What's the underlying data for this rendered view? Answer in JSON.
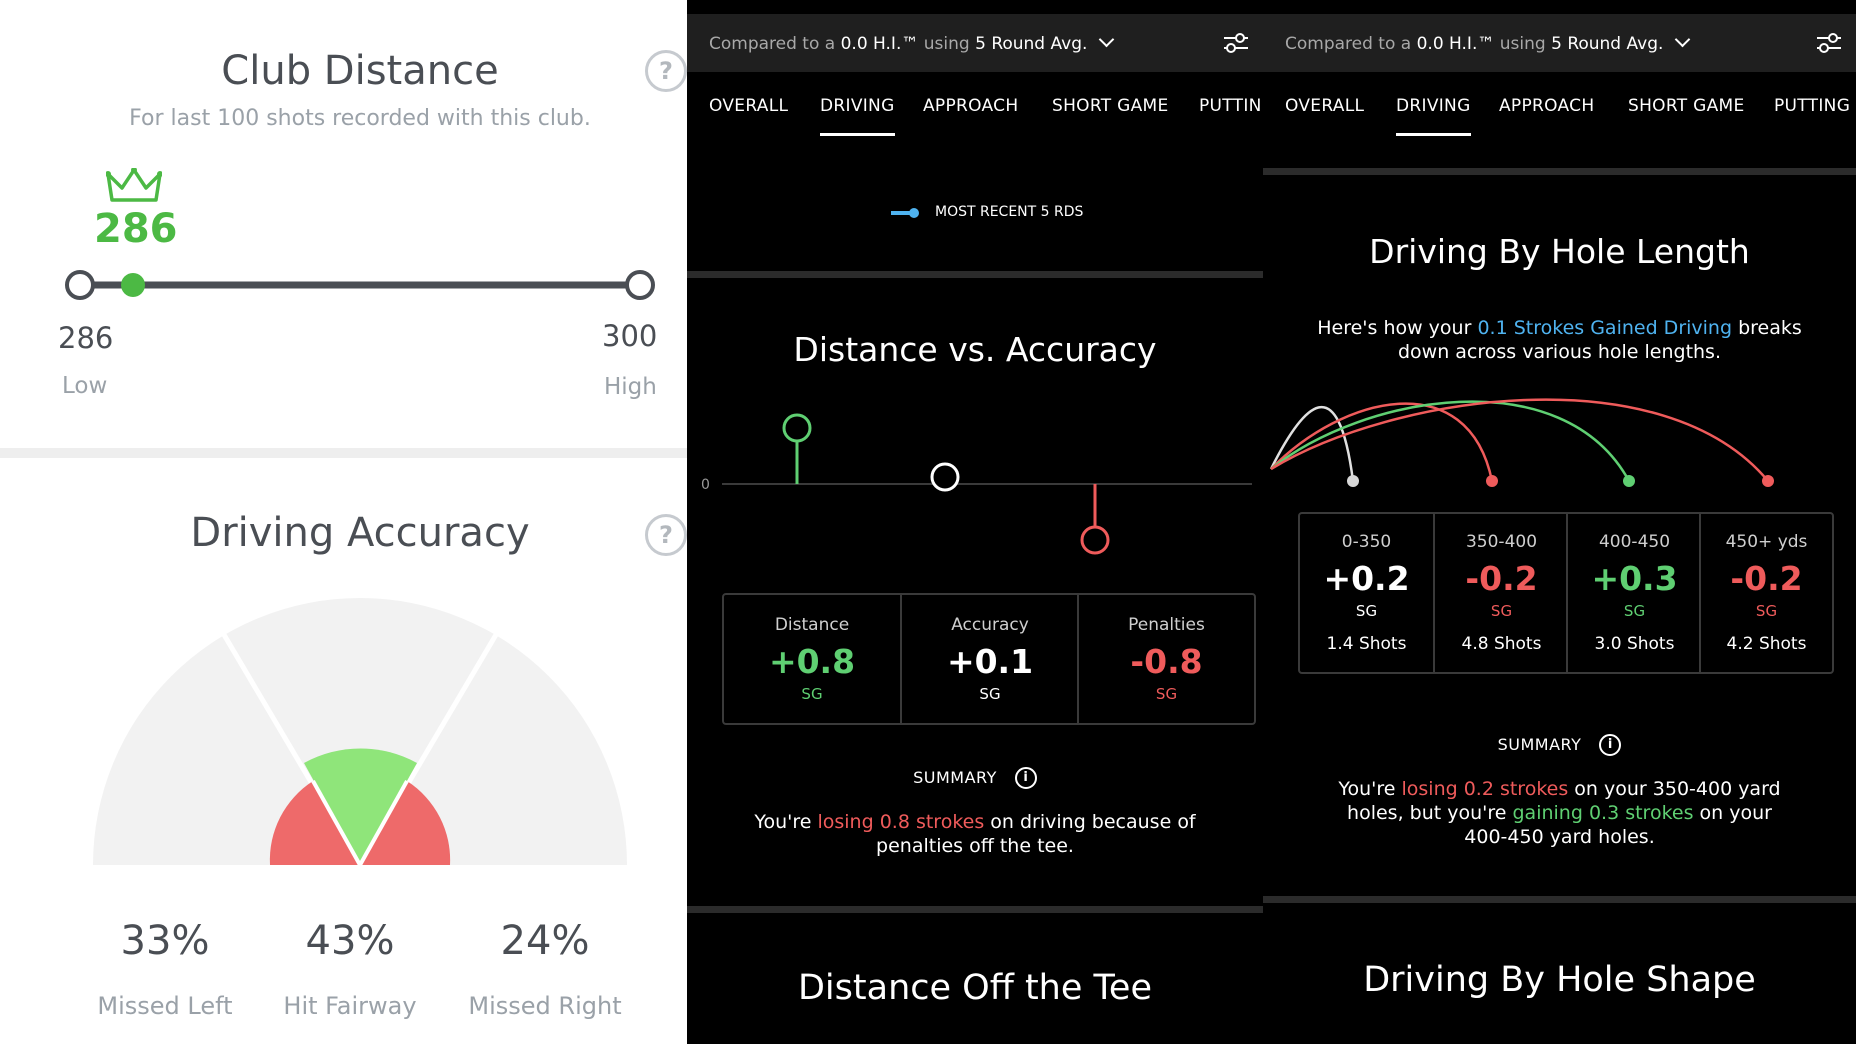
{
  "club_distance": {
    "title": "Club Distance",
    "subtitle": "For last 100 shots recorded with this club.",
    "help_symbol": "?",
    "current_value": "286",
    "current_fraction": 0.0,
    "low_value": "286",
    "low_label": "Low",
    "high_value": "300",
    "high_label": "High",
    "accent": "#4cb944"
  },
  "driving_accuracy": {
    "title": "Driving Accuracy",
    "help_symbol": "?",
    "stats": [
      {
        "value": "33%",
        "label": "Missed Left"
      },
      {
        "value": "43%",
        "label": "Hit Fairway"
      },
      {
        "value": "24%",
        "label": "Missed Right"
      }
    ],
    "colors": {
      "miss": "#ee6a6a",
      "hit": "#8fe57a",
      "bg": "#f2f2f2"
    }
  },
  "panel_driving_overview": {
    "header": {
      "compared_prefix": "Compared to a",
      "compared_value": "0.0 H.I.™",
      "using_prefix": "using",
      "using_value": "5 Round Avg."
    },
    "tabs": [
      "OVERALL",
      "DRIVING",
      "APPROACH",
      "SHORT GAME",
      "PUTTIN"
    ],
    "active_tab": "DRIVING",
    "legend_label": "MOST RECENT 5 RDS",
    "chart_title": "Distance vs. Accuracy",
    "chart_data": {
      "type": "bar",
      "categories": [
        "Distance",
        "Accuracy",
        "Penalties"
      ],
      "values": [
        0.8,
        0.1,
        -0.8
      ],
      "zero_label": "0",
      "colors": [
        "#5fcf72",
        "#ffffff",
        "#ef5b5b"
      ]
    },
    "cells": [
      {
        "label": "Distance",
        "value": "+0.8",
        "unit": "SG",
        "color": "#5fcf72"
      },
      {
        "label": "Accuracy",
        "value": "+0.1",
        "unit": "SG",
        "color": "#ffffff"
      },
      {
        "label": "Penalties",
        "value": "-0.8",
        "unit": "SG",
        "color": "#ef5b5b"
      }
    ],
    "summary_label": "SUMMARY",
    "summary_pre": "You're",
    "summary_highlight": "losing 0.8 strokes",
    "summary_post": "on driving because of penalties off the tee.",
    "next_section": "Distance Off the Tee"
  },
  "panel_hole_length": {
    "header": {
      "compared_prefix": "Compared to a",
      "compared_value": "0.0 H.I.™",
      "using_prefix": "using",
      "using_value": "5 Round Avg."
    },
    "tabs": [
      "OVERALL",
      "DRIVING",
      "APPROACH",
      "SHORT GAME",
      "PUTTING"
    ],
    "active_tab": "DRIVING",
    "section_title": "Driving By Hole Length",
    "intro_pre": "Here's how your",
    "intro_highlight": "0.1 Strokes Gained Driving",
    "intro_post": "breaks down across various hole lengths.",
    "cells": [
      {
        "label": "0-350",
        "value": "+0.2",
        "unit": "SG",
        "shots": "1.4 Shots",
        "color": "#ffffff"
      },
      {
        "label": "350-400",
        "value": "-0.2",
        "unit": "SG",
        "shots": "4.8 Shots",
        "color": "#ef5b5b"
      },
      {
        "label": "400-450",
        "value": "+0.3",
        "unit": "SG",
        "shots": "3.0 Shots",
        "color": "#5fcf72"
      },
      {
        "label": "450+ yds",
        "value": "-0.2",
        "unit": "SG",
        "shots": "4.2 Shots",
        "color": "#ef5b5b"
      }
    ],
    "summary_label": "SUMMARY",
    "summary_p1": "You're",
    "summary_h1": "losing 0.2 strokes",
    "summary_p2": "on your 350-400 yard holes, but you're",
    "summary_h2": "gaining 0.3 strokes",
    "summary_p3": "on your 400-450 yard holes.",
    "next_section": "Driving By Hole Shape"
  }
}
